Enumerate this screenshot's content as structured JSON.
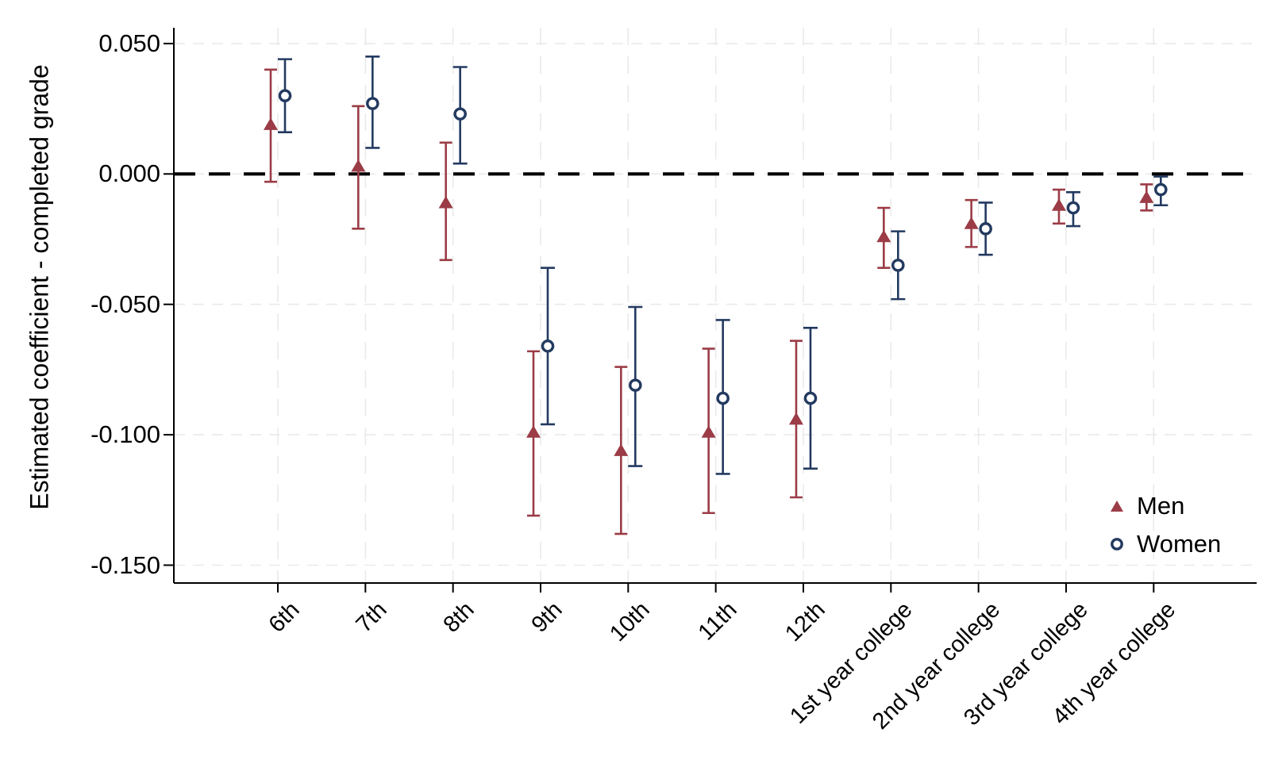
{
  "figure": {
    "background": "#FFFFFF"
  },
  "chart_data": {
    "type": "scatter",
    "subtype": "coefficient-plot-with-95ci-error-bars",
    "title": "",
    "xlabel": "",
    "ylabel": "Estimated coefficient - completed grade",
    "categories": [
      "6th",
      "7th",
      "8th",
      "9th",
      "10th",
      "11th",
      "12th",
      "1st year college",
      "2nd year college",
      "3rd year college",
      "4th year college"
    ],
    "x_label_angle_deg": 45,
    "y_ticks": [
      {
        "value": 0.05,
        "label": "0.050"
      },
      {
        "value": 0.0,
        "label": "0.000"
      },
      {
        "value": -0.05,
        "label": "-0.050"
      },
      {
        "value": -0.1,
        "label": "-0.100"
      },
      {
        "value": -0.15,
        "label": "-0.150"
      }
    ],
    "ylim": [
      -0.157,
      0.056
    ],
    "grid": true,
    "zero_reference_line": {
      "value": 0.0,
      "style": "dashed",
      "color": "#000000"
    },
    "legend_position": "inside-bottom-right",
    "colors": {
      "grid": "#EAEAEA",
      "axis": "#000000",
      "zero": "#000000"
    },
    "series": [
      {
        "name": "Men",
        "marker": "triangle",
        "color": "#9B3C46",
        "estimates": [
          0.019,
          0.003,
          -0.011,
          -0.099,
          -0.106,
          -0.099,
          -0.094,
          -0.024,
          -0.019,
          -0.012,
          -0.009
        ],
        "ci_low": [
          -0.003,
          -0.021,
          -0.033,
          -0.131,
          -0.138,
          -0.13,
          -0.124,
          -0.036,
          -0.028,
          -0.019,
          -0.014
        ],
        "ci_high": [
          0.04,
          0.026,
          0.012,
          -0.068,
          -0.074,
          -0.067,
          -0.064,
          -0.013,
          -0.01,
          -0.006,
          -0.004
        ]
      },
      {
        "name": "Women",
        "marker": "open-circle",
        "color": "#233A60",
        "estimates": [
          0.03,
          0.027,
          0.023,
          -0.066,
          -0.081,
          -0.086,
          -0.086,
          -0.035,
          -0.021,
          -0.013,
          -0.006
        ],
        "ci_low": [
          0.016,
          0.01,
          0.004,
          -0.096,
          -0.112,
          -0.115,
          -0.113,
          -0.048,
          -0.031,
          -0.02,
          -0.012
        ],
        "ci_high": [
          0.044,
          0.045,
          0.041,
          -0.036,
          -0.051,
          -0.056,
          -0.059,
          -0.022,
          -0.011,
          -0.007,
          -0.001
        ]
      }
    ]
  }
}
